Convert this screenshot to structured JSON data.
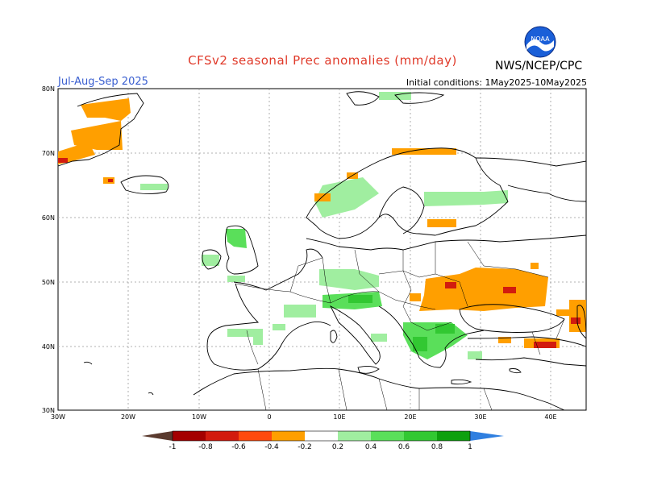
{
  "title": "CFSv2 seasonal Prec anomalies (mm/day)",
  "period": "Jul-Aug-Sep 2025",
  "initial_conditions": "Initial conditions: 1May2025-10May2025",
  "agency": "NWS/NCEP/CPC",
  "logo_text": "NOAA",
  "map": {
    "lat_labels": [
      "80N",
      "70N",
      "60N",
      "50N",
      "40N",
      "30N"
    ],
    "lon_labels": [
      "30W",
      "20W",
      "10W",
      "0",
      "10E",
      "20E",
      "30E",
      "40E"
    ],
    "colors": {
      "anom_neg_lt_-1": "#5a3a2e",
      "anom_-1_-0.8": "#a40000",
      "anom_-0.8_-0.6": "#d21b0e",
      "anom_-0.6_-0.4": "#ff4a0e",
      "anom_-0.4_-0.2": "#ff9f00",
      "anom_0.2_0.4": "#a0eea0",
      "anom_0.4_0.6": "#5adf5a",
      "anom_0.6_0.8": "#32c832",
      "anom_0.8_1": "#0ea00e",
      "anom_gt_1": "#2f7fe0"
    }
  },
  "colorbar": {
    "labels": [
      "-1",
      "-0.8",
      "-0.6",
      "-0.4",
      "-0.2",
      "0.2",
      "0.4",
      "0.6",
      "0.8",
      "1"
    ],
    "colors": [
      "#5a3a2e",
      "#a40000",
      "#d21b0e",
      "#ff4a0e",
      "#ff9f00",
      "#ffffff",
      "#a0eea0",
      "#5adf5a",
      "#32c832",
      "#0ea00e",
      "#2f7fe0"
    ]
  }
}
